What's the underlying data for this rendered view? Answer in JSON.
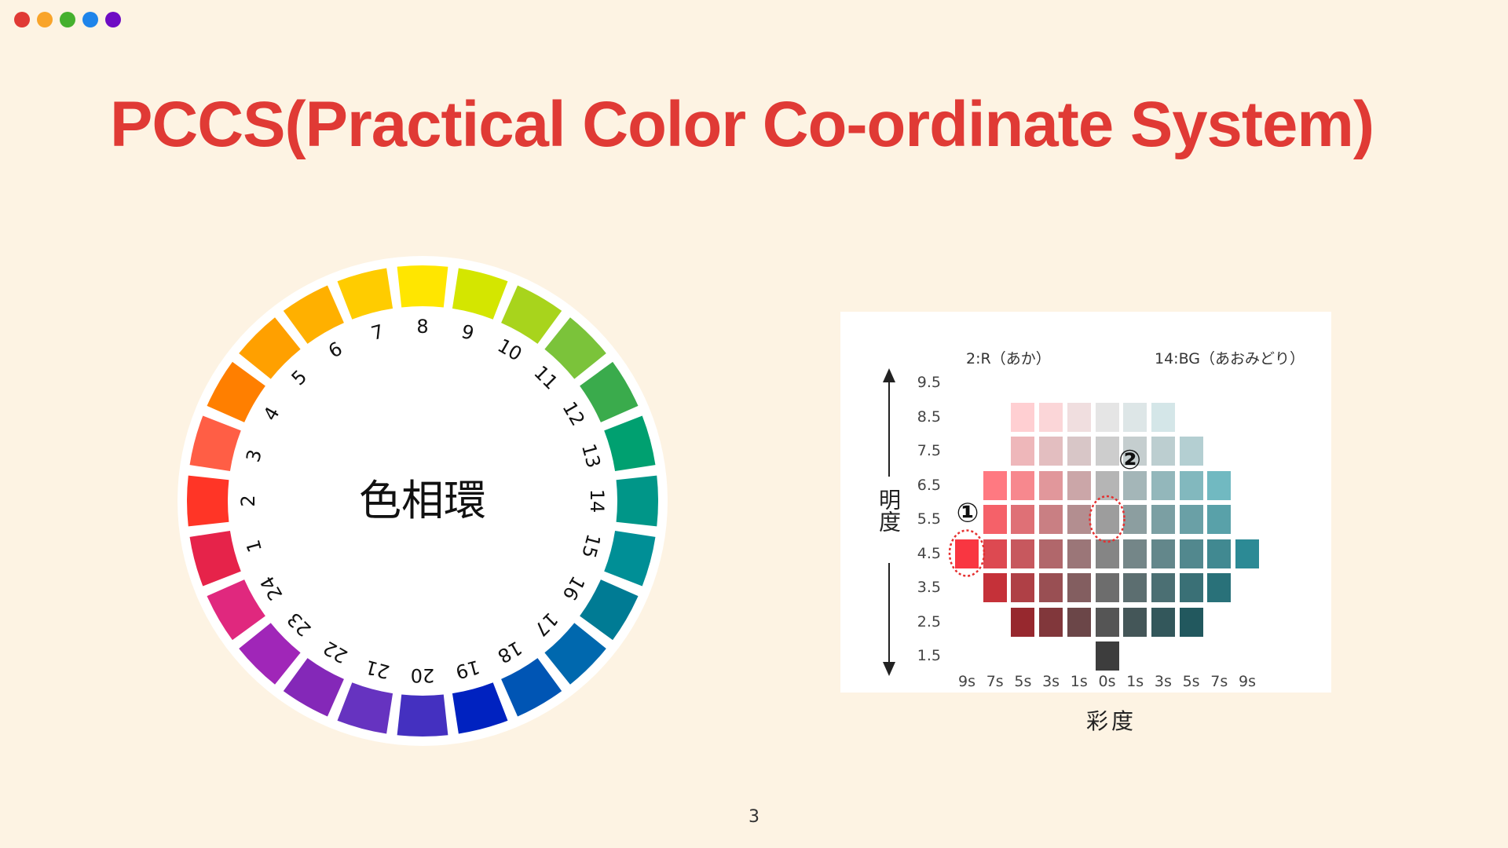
{
  "window_dots": [
    "#e03a35",
    "#f9a42a",
    "#45b02e",
    "#1e84ea",
    "#6e0bc4"
  ],
  "title": "PCCS(Practical Color Co-ordinate System)",
  "title_color": "#e03a35",
  "hue_circle": {
    "center_label": "色相環",
    "hues": [
      {
        "n": "1",
        "color": "#e6234a"
      },
      {
        "n": "2",
        "color": "#ff3526"
      },
      {
        "n": "3",
        "color": "#ff5e45"
      },
      {
        "n": "4",
        "color": "#ff7f00"
      },
      {
        "n": "5",
        "color": "#ffa000"
      },
      {
        "n": "6",
        "color": "#ffb000"
      },
      {
        "n": "7",
        "color": "#ffcc00"
      },
      {
        "n": "8",
        "color": "#ffe600"
      },
      {
        "n": "9",
        "color": "#d4e600"
      },
      {
        "n": "10",
        "color": "#a8d41c"
      },
      {
        "n": "11",
        "color": "#7bc33a"
      },
      {
        "n": "12",
        "color": "#3aab4c"
      },
      {
        "n": "13",
        "color": "#00a070"
      },
      {
        "n": "14",
        "color": "#009688"
      },
      {
        "n": "15",
        "color": "#008f96"
      },
      {
        "n": "16",
        "color": "#007b94"
      },
      {
        "n": "17",
        "color": "#0068ae"
      },
      {
        "n": "18",
        "color": "#0055b4"
      },
      {
        "n": "19",
        "color": "#0022c0"
      },
      {
        "n": "20",
        "color": "#4430c0"
      },
      {
        "n": "21",
        "color": "#6633c0"
      },
      {
        "n": "22",
        "color": "#8428b8"
      },
      {
        "n": "23",
        "color": "#a026b8"
      },
      {
        "n": "24",
        "color": "#e0287e"
      }
    ]
  },
  "tone_chart": {
    "left_hue": "2:R（あか）",
    "right_hue": "14:BG（あおみどり）",
    "y_axis_label": "明度",
    "x_axis_label": "彩度",
    "lightness_values": [
      "9.5",
      "8.5",
      "7.5",
      "6.5",
      "5.5",
      "4.5",
      "3.5",
      "2.5",
      "1.5"
    ],
    "saturation_values": [
      "9s",
      "7s",
      "5s",
      "3s",
      "1s",
      "0s",
      "1s",
      "3s",
      "5s",
      "7s",
      "9s"
    ],
    "rows": [
      {
        "lightness": "8.5",
        "columns": [
          2,
          3,
          4,
          5,
          6,
          7
        ]
      },
      {
        "lightness": "7.5",
        "columns": [
          2,
          3,
          4,
          5,
          6,
          7,
          8
        ]
      },
      {
        "lightness": "6.5",
        "columns": [
          1,
          2,
          3,
          4,
          5,
          6,
          7,
          8,
          9
        ]
      },
      {
        "lightness": "5.5",
        "columns": [
          1,
          2,
          3,
          4,
          5,
          6,
          7,
          8,
          9
        ]
      },
      {
        "lightness": "4.5",
        "columns": [
          0,
          1,
          2,
          3,
          4,
          5,
          6,
          7,
          8,
          9,
          10
        ]
      },
      {
        "lightness": "3.5",
        "columns": [
          1,
          2,
          3,
          4,
          5,
          6,
          7,
          8,
          9
        ]
      },
      {
        "lightness": "2.5",
        "columns": [
          2,
          3,
          4,
          5,
          6,
          7,
          8
        ]
      },
      {
        "lightness": "1.5",
        "columns": [
          5
        ]
      }
    ],
    "markers": [
      {
        "label": "①",
        "lightness": "4.5",
        "column": 0
      },
      {
        "label": "②",
        "lightness": "5.5",
        "column": 5
      }
    ],
    "marker_color": "#e53030"
  },
  "page_number": "3"
}
